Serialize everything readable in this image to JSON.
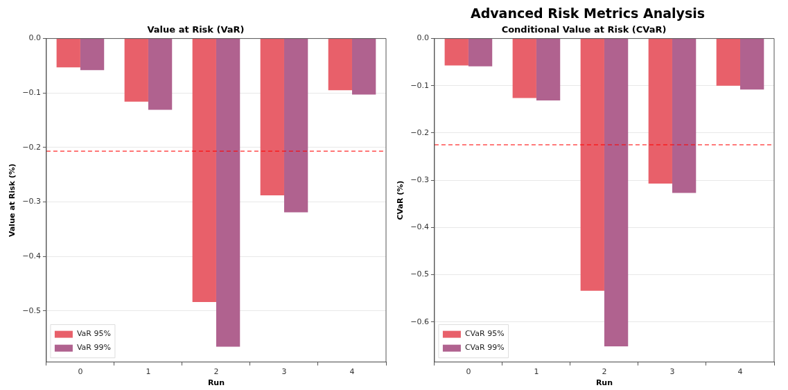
{
  "chart_data": [
    {
      "type": "bar",
      "title": "Value at Risk (VaR)",
      "xlabel": "Run",
      "ylabel": "Value at Risk (%)",
      "categories": [
        "0",
        "1",
        "2",
        "3",
        "4"
      ],
      "series": [
        {
          "name": "VaR 95%",
          "color": "#e8606a",
          "values": [
            -0.053,
            -0.116,
            -0.484,
            -0.288,
            -0.095
          ]
        },
        {
          "name": "VaR 99%",
          "color": "#b0628f",
          "values": [
            -0.058,
            -0.131,
            -0.566,
            -0.319,
            -0.103
          ]
        }
      ],
      "ylim": [
        -0.594,
        0
      ],
      "yticks": [
        {
          "value": 0,
          "label": "0.0"
        },
        {
          "value": -0.1,
          "label": "−0.1"
        },
        {
          "value": -0.2,
          "label": "−0.2"
        },
        {
          "value": -0.3,
          "label": "−0.3"
        },
        {
          "value": -0.4,
          "label": "−0.4"
        },
        {
          "value": -0.5,
          "label": "−0.5"
        }
      ],
      "ref_lines": [
        {
          "axis": "y",
          "value": -0.207,
          "color": "#ff0000",
          "line_style": "dashed"
        }
      ],
      "grid": "y",
      "legend": "bottom left"
    },
    {
      "type": "bar",
      "title": "Conditional Value at Risk (CVaR)",
      "xlabel": "Run",
      "ylabel": "CVaR (%)",
      "categories": [
        "0",
        "1",
        "2",
        "3",
        "4"
      ],
      "series": [
        {
          "name": "CVaR 95%",
          "color": "#e8606a",
          "values": [
            -0.057,
            -0.126,
            -0.534,
            -0.307,
            -0.1
          ]
        },
        {
          "name": "CVaR 99%",
          "color": "#b0628f",
          "values": [
            -0.059,
            -0.131,
            -0.652,
            -0.327,
            -0.108
          ]
        }
      ],
      "ylim": [
        -0.685,
        0
      ],
      "yticks": [
        {
          "value": 0,
          "label": "0.0"
        },
        {
          "value": -0.1,
          "label": "−0.1"
        },
        {
          "value": -0.2,
          "label": "−0.2"
        },
        {
          "value": -0.3,
          "label": "−0.3"
        },
        {
          "value": -0.4,
          "label": "−0.4"
        },
        {
          "value": -0.5,
          "label": "−0.5"
        },
        {
          "value": -0.6,
          "label": "−0.6"
        }
      ],
      "ref_lines": [
        {
          "axis": "y",
          "value": -0.225,
          "color": "#ff0000",
          "line_style": "dashed"
        }
      ],
      "grid": "y",
      "legend": "bottom left",
      "annotations": [
        "Advanced Risk Metrics Analysis"
      ]
    }
  ]
}
